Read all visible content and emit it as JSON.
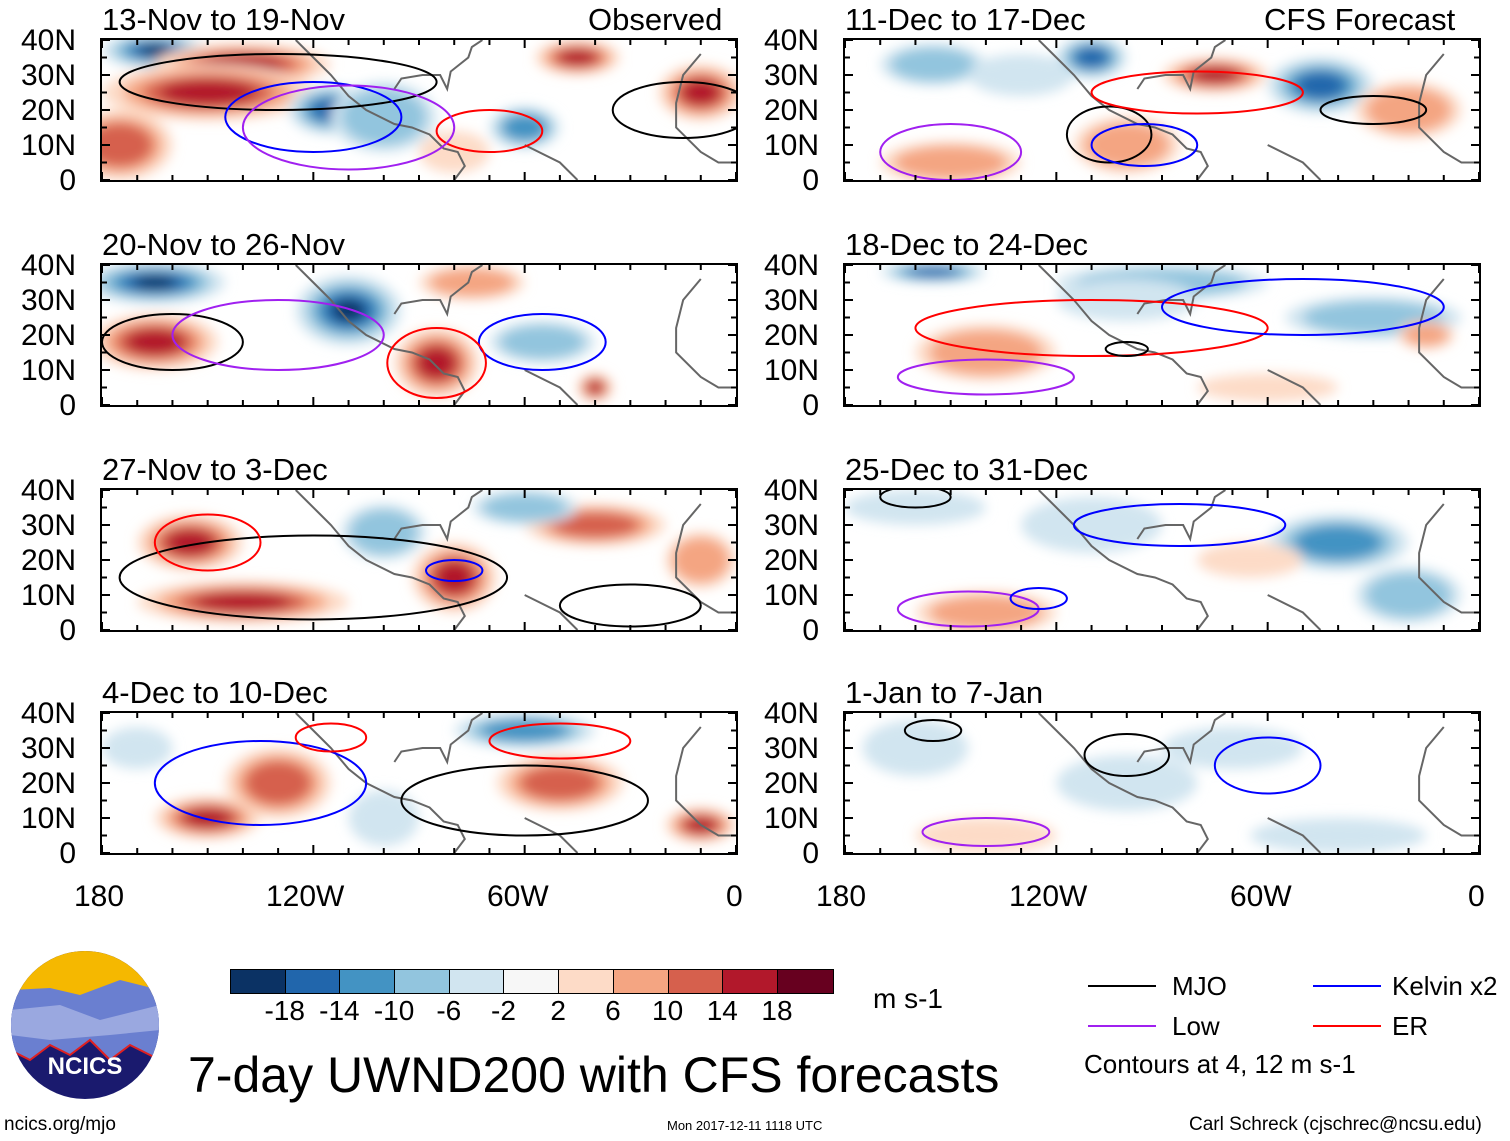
{
  "header": {
    "observed_label": "Observed",
    "forecast_label": "CFS Forecast"
  },
  "axes": {
    "lat_labels": [
      "40N",
      "30N",
      "20N",
      "10N",
      "0"
    ],
    "lon_labels": [
      "180",
      "120W",
      "60W",
      "0"
    ]
  },
  "palette": [
    "#0b3264",
    "#2166ac",
    "#4393c3",
    "#92c5de",
    "#d1e5f0",
    "#f7f7f7",
    "#fddbc7",
    "#f4a582",
    "#d6604d",
    "#b2182b",
    "#67001f"
  ],
  "contour_colors": {
    "MJO": "#000000",
    "Kelvin": "#0000ff",
    "Low": "#a020f0",
    "ER": "#ff0000"
  },
  "panels": [
    {
      "title": "13-Nov to 19-Nov",
      "anom": [
        [
          165,
          37,
          15,
          5,
          -20
        ],
        [
          140,
          33,
          25,
          6,
          16
        ],
        [
          150,
          25,
          30,
          8,
          18
        ],
        [
          115,
          20,
          12,
          7,
          -18
        ],
        [
          100,
          18,
          15,
          10,
          -8
        ],
        [
          60,
          15,
          10,
          6,
          -12
        ],
        [
          45,
          35,
          12,
          5,
          17
        ],
        [
          10,
          25,
          12,
          8,
          15
        ],
        [
          175,
          10,
          15,
          10,
          12
        ],
        [
          80,
          8,
          10,
          6,
          6
        ]
      ],
      "contours": [
        [
          "MJO",
          130,
          28,
          45,
          8
        ],
        [
          "Kelvin",
          120,
          18,
          25,
          10
        ],
        [
          "ER",
          70,
          14,
          15,
          6
        ],
        [
          "Low",
          110,
          15,
          30,
          12
        ],
        [
          "MJO",
          15,
          20,
          20,
          8
        ]
      ]
    },
    {
      "title": "20-Nov to 26-Nov",
      "anom": [
        [
          165,
          35,
          20,
          6,
          -20
        ],
        [
          165,
          18,
          18,
          8,
          17
        ],
        [
          110,
          27,
          15,
          10,
          -20
        ],
        [
          85,
          12,
          12,
          10,
          18
        ],
        [
          55,
          18,
          15,
          6,
          -10
        ],
        [
          75,
          35,
          15,
          5,
          8
        ],
        [
          40,
          5,
          5,
          4,
          16
        ]
      ],
      "contours": [
        [
          "MJO",
          160,
          18,
          20,
          8
        ],
        [
          "Kelvin",
          55,
          18,
          18,
          8
        ],
        [
          "ER",
          85,
          12,
          14,
          10
        ],
        [
          "Low",
          130,
          20,
          30,
          10
        ]
      ]
    },
    {
      "title": "27-Nov to 3-Dec",
      "anom": [
        [
          155,
          25,
          15,
          8,
          15
        ],
        [
          140,
          8,
          30,
          6,
          16
        ],
        [
          80,
          15,
          12,
          10,
          16
        ],
        [
          100,
          28,
          12,
          8,
          -10
        ],
        [
          40,
          30,
          20,
          6,
          12
        ],
        [
          60,
          35,
          15,
          5,
          -10
        ],
        [
          10,
          20,
          10,
          8,
          8
        ]
      ],
      "contours": [
        [
          "MJO",
          120,
          15,
          55,
          12
        ],
        [
          "Kelvin",
          80,
          17,
          8,
          3
        ],
        [
          "ER",
          150,
          25,
          15,
          8
        ],
        [
          "MJO",
          30,
          7,
          20,
          6
        ]
      ]
    },
    {
      "title": "4-Dec to 10-Dec",
      "anom": [
        [
          150,
          10,
          15,
          6,
          18
        ],
        [
          130,
          20,
          15,
          10,
          12
        ],
        [
          50,
          20,
          18,
          8,
          14
        ],
        [
          10,
          8,
          10,
          5,
          18
        ],
        [
          60,
          35,
          20,
          5,
          -12
        ],
        [
          170,
          30,
          10,
          6,
          -4
        ],
        [
          100,
          10,
          10,
          8,
          -5
        ]
      ],
      "contours": [
        [
          "Kelvin",
          135,
          20,
          30,
          12
        ],
        [
          "ER",
          115,
          33,
          10,
          4
        ],
        [
          "MJO",
          60,
          15,
          35,
          10
        ],
        [
          "ER",
          50,
          32,
          20,
          5
        ]
      ]
    },
    {
      "title": "11-Dec to 17-Dec",
      "anom": [
        [
          155,
          33,
          15,
          6,
          -10
        ],
        [
          110,
          35,
          10,
          6,
          -18
        ],
        [
          75,
          30,
          15,
          5,
          16
        ],
        [
          45,
          27,
          15,
          8,
          -18
        ],
        [
          150,
          5,
          20,
          6,
          8
        ],
        [
          100,
          10,
          15,
          8,
          8
        ],
        [
          20,
          20,
          15,
          8,
          8
        ],
        [
          130,
          30,
          15,
          6,
          -6
        ]
      ],
      "contours": [
        [
          "MJO",
          105,
          13,
          12,
          8
        ],
        [
          "ER",
          80,
          25,
          30,
          6
        ],
        [
          "Kelvin",
          95,
          10,
          15,
          6
        ],
        [
          "Low",
          150,
          8,
          20,
          8
        ],
        [
          "MJO",
          30,
          20,
          15,
          4
        ]
      ]
    },
    {
      "title": "18-Dec to 24-Dec",
      "anom": [
        [
          155,
          38,
          15,
          3,
          -16
        ],
        [
          140,
          15,
          20,
          8,
          10
        ],
        [
          90,
          35,
          30,
          5,
          -8
        ],
        [
          30,
          25,
          25,
          6,
          -10
        ],
        [
          15,
          20,
          8,
          4,
          10
        ],
        [
          60,
          5,
          20,
          4,
          4
        ],
        [
          100,
          30,
          20,
          6,
          -6
        ]
      ],
      "contours": [
        [
          "ER",
          110,
          22,
          50,
          8
        ],
        [
          "Low",
          140,
          8,
          25,
          5
        ],
        [
          "MJO",
          100,
          16,
          6,
          2
        ],
        [
          "Kelvin",
          50,
          28,
          40,
          8
        ]
      ]
    },
    {
      "title": "25-Dec to 31-Dec",
      "anom": [
        [
          40,
          25,
          20,
          8,
          -12
        ],
        [
          140,
          5,
          20,
          6,
          8
        ],
        [
          160,
          35,
          20,
          5,
          -6
        ],
        [
          110,
          30,
          20,
          8,
          -6
        ],
        [
          20,
          10,
          15,
          8,
          -8
        ],
        [
          65,
          20,
          15,
          5,
          4
        ]
      ],
      "contours": [
        [
          "Low",
          145,
          6,
          20,
          5
        ],
        [
          "Kelvin",
          125,
          9,
          8,
          3
        ],
        [
          "Kelvin",
          85,
          30,
          30,
          6
        ],
        [
          "MJO",
          160,
          38,
          10,
          3
        ]
      ]
    },
    {
      "title": "1-Jan to 7-Jan",
      "anom": [
        [
          140,
          5,
          20,
          5,
          4
        ],
        [
          160,
          30,
          15,
          8,
          -5
        ],
        [
          70,
          30,
          20,
          6,
          -6
        ],
        [
          40,
          5,
          25,
          5,
          -6
        ],
        [
          100,
          20,
          20,
          8,
          -3
        ]
      ],
      "contours": [
        [
          "Low",
          140,
          6,
          18,
          4
        ],
        [
          "MJO",
          155,
          35,
          8,
          3
        ],
        [
          "Kelvin",
          60,
          25,
          15,
          8
        ],
        [
          "MJO",
          100,
          28,
          12,
          6
        ]
      ]
    }
  ],
  "colorbar": {
    "labels": [
      "-18",
      "-14",
      "-10",
      "-6",
      "-2",
      "2",
      "6",
      "10",
      "14",
      "18"
    ],
    "units": "m s-1"
  },
  "legend": {
    "mjo": "MJO",
    "kelvin": "Kelvin x2",
    "low": "Low",
    "er": "ER",
    "note": "Contours at 4, 12 m s-1"
  },
  "footer": {
    "title": "7-day UWND200 with CFS forecasts",
    "logo_text": "NCICS",
    "url": "ncics.org/mjo",
    "timestamp": "Mon 2017-12-11 1118 UTC",
    "credit": "Carl Schreck (cjschrec@ncsu.edu)"
  }
}
